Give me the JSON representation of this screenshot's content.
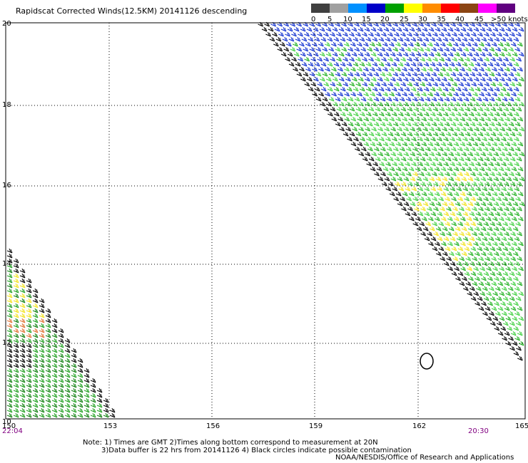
{
  "title": "Rapidscat Corrected Winds(12.5KM) 20141126 descending",
  "legend": {
    "colors": [
      "#000000",
      "#7f7f7f",
      "#b0b0b0",
      "#00a0ff",
      "#0050ff",
      "#0000c8",
      "#00a000",
      "#20c020",
      "#40e040",
      "#ffff00",
      "#ffc000",
      "#ff8000",
      "#ff4000",
      "#ff0000",
      "#c00000",
      "#805000",
      "#a06040",
      "#ff00ff",
      "#c000c0",
      "#800080",
      "#4b0082"
    ],
    "labels": [
      "0",
      "5",
      "10",
      "15",
      "20",
      "25",
      "30",
      "35",
      "40",
      "45",
      ">50 knots"
    ]
  },
  "map": {
    "lat_labels": [
      "20",
      "18",
      "16",
      "14",
      "12",
      "10"
    ],
    "lon_labels": [
      "150",
      "153",
      "156",
      "159",
      "162",
      "165"
    ]
  },
  "times": {
    "left": "22:04",
    "right": "20:30"
  },
  "notes": {
    "line1": "Note: 1) Times are GMT 2)Times along bottom correspond to measurement at 20N",
    "line2": "3)Data buffer is 22 hrs from 20141126 4) Black circles indicate possible contamination",
    "credit": "NOAA/NESDIS/Office of Research and Applications"
  }
}
